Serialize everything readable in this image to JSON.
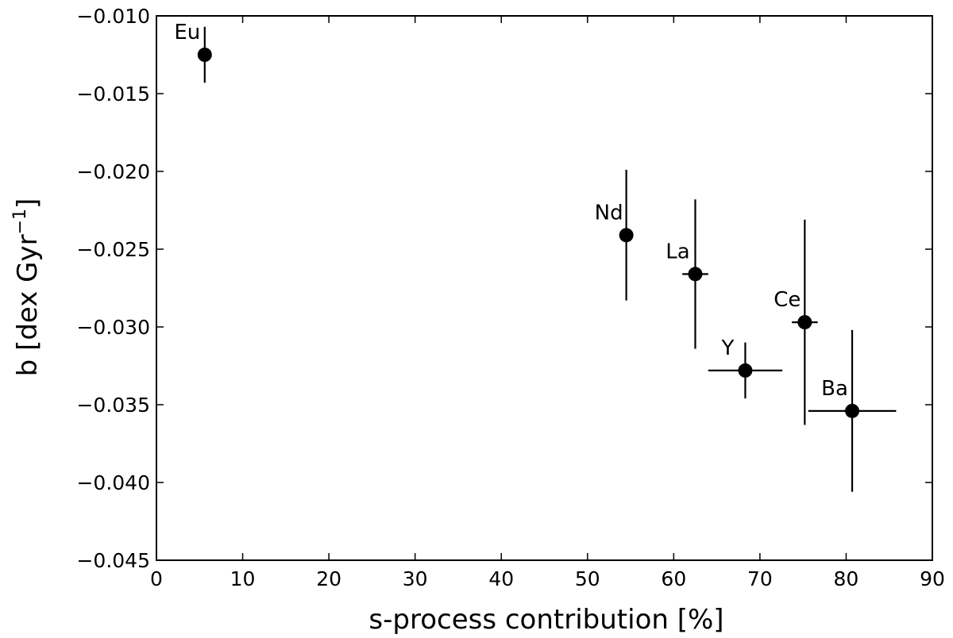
{
  "chart_data": {
    "type": "scatter",
    "title": "",
    "xlabel": "s-process contribution [%]",
    "ylabel_main": "b [dex Gyr",
    "ylabel_sup": "−1",
    "ylabel_end": "]",
    "xlim": [
      0,
      90
    ],
    "ylim": [
      -0.045,
      -0.01
    ],
    "x_ticks": [
      0,
      10,
      20,
      30,
      40,
      50,
      60,
      70,
      80,
      90
    ],
    "y_ticks": [
      -0.045,
      -0.04,
      -0.035,
      -0.03,
      -0.025,
      -0.02,
      -0.015,
      -0.01
    ],
    "x_tick_labels": [
      "0",
      "10",
      "20",
      "30",
      "40",
      "50",
      "60",
      "70",
      "80",
      "90"
    ],
    "y_tick_labels": [
      "−0.045",
      "−0.040",
      "−0.035",
      "−0.030",
      "−0.025",
      "−0.020",
      "−0.015",
      "−0.010"
    ],
    "grid": false,
    "points": [
      {
        "label": "Eu",
        "x": 5.6,
        "y": -0.0125,
        "xerr": 0.0,
        "yerr": 0.0018
      },
      {
        "label": "Nd",
        "x": 54.5,
        "y": -0.0241,
        "xerr": 0.8,
        "yerr": 0.0042
      },
      {
        "label": "La",
        "x": 62.5,
        "y": -0.0266,
        "xerr": 1.5,
        "yerr": 0.0048
      },
      {
        "label": "Y",
        "x": 68.3,
        "y": -0.0328,
        "xerr": 4.3,
        "yerr": 0.0018
      },
      {
        "label": "Ce",
        "x": 75.2,
        "y": -0.0297,
        "xerr": 1.5,
        "yerr": 0.0066
      },
      {
        "label": "Ba",
        "x": 80.7,
        "y": -0.0354,
        "xerr": 5.1,
        "yerr": 0.0052
      }
    ],
    "colors": {
      "markers": "#000000",
      "axes": "#000000"
    }
  }
}
